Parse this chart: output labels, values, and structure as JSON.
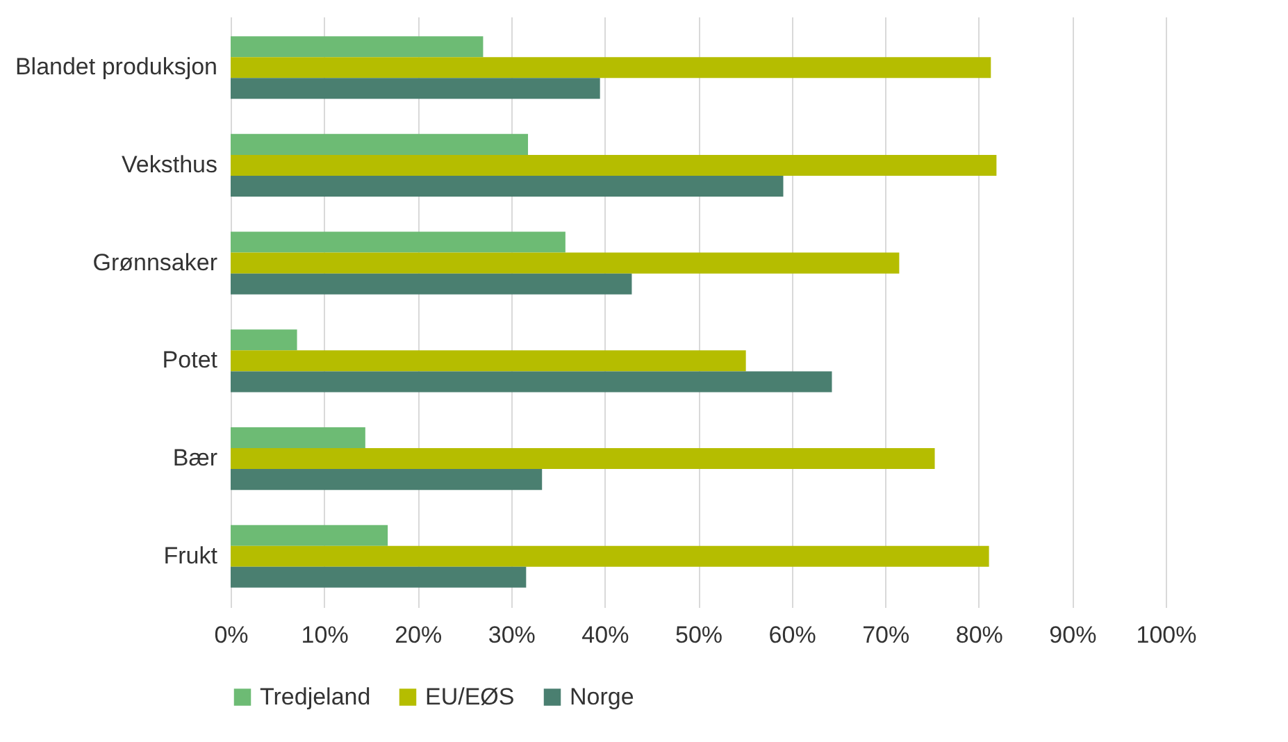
{
  "chart_data": {
    "type": "bar",
    "orientation": "horizontal",
    "categories": [
      "Blandet produksjon",
      "Veksthus",
      "Grønnsaker",
      "Potet",
      "Bær",
      "Frukt"
    ],
    "series": [
      {
        "name": "Tredjeland",
        "color": "#6dbb74",
        "values": [
          27.0,
          31.8,
          35.8,
          7.1,
          14.4,
          16.8
        ]
      },
      {
        "name": "EU/EØS",
        "color": "#b5bd00",
        "values": [
          81.3,
          81.9,
          71.5,
          55.1,
          75.3,
          81.1
        ]
      },
      {
        "name": "Norge",
        "color": "#4a7f70",
        "values": [
          39.5,
          59.1,
          42.9,
          64.3,
          33.3,
          31.6
        ]
      }
    ],
    "xlim": [
      0,
      100
    ],
    "xticks": [
      {
        "value": 0,
        "label": "0%"
      },
      {
        "value": 10,
        "label": "10%"
      },
      {
        "value": 20,
        "label": "20%"
      },
      {
        "value": 30,
        "label": "30%"
      },
      {
        "value": 40,
        "label": "40%"
      },
      {
        "value": 50,
        "label": "50%"
      },
      {
        "value": 60,
        "label": "60%"
      },
      {
        "value": 70,
        "label": "70%"
      },
      {
        "value": 80,
        "label": "80%"
      },
      {
        "value": 90,
        "label": "90%"
      },
      {
        "value": 100,
        "label": "100%"
      }
    ],
    "grid": "x",
    "legend": "bottom"
  }
}
